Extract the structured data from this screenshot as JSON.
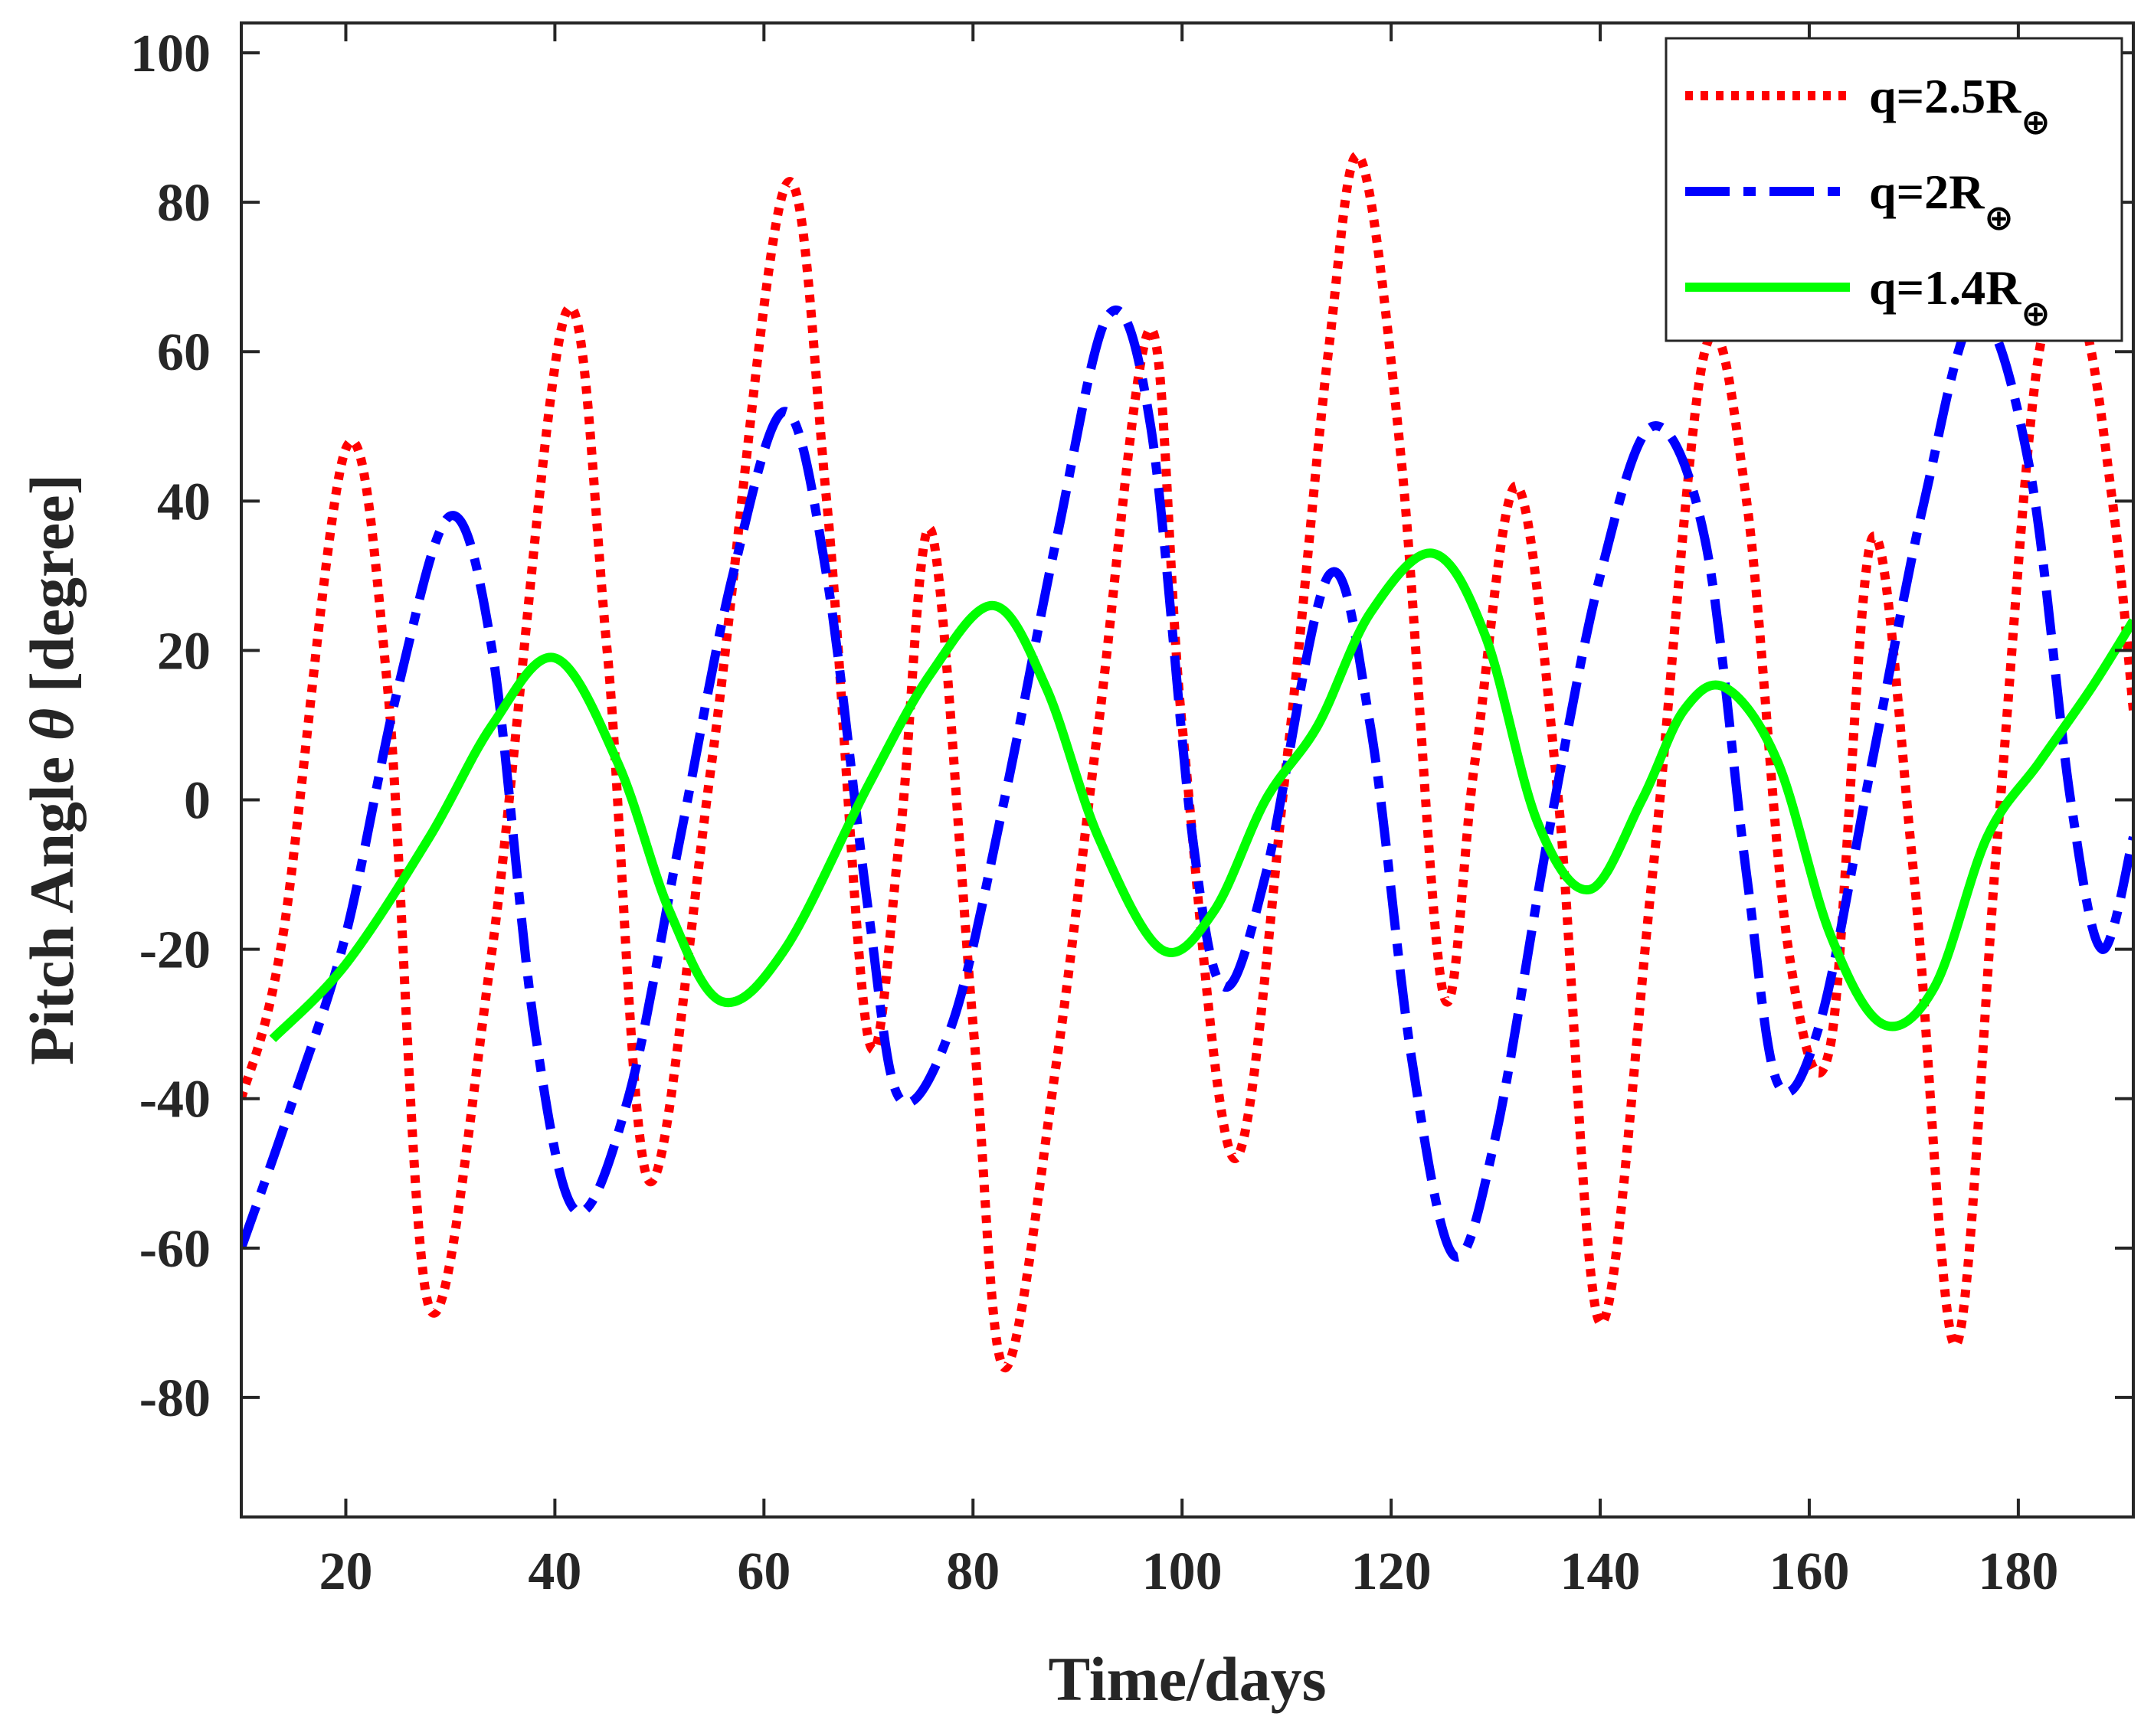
{
  "chart_data": {
    "type": "line",
    "title": "",
    "xlabel": "Time/days",
    "ylabel_prefix": "Pitch Angle ",
    "ylabel_symbol": "θ",
    "ylabel_suffix": " [degree]",
    "xlim": [
      10,
      191
    ],
    "ylim": [
      -96,
      104
    ],
    "xticks": [
      20,
      40,
      60,
      80,
      100,
      120,
      140,
      160,
      180
    ],
    "yticks": [
      -80,
      -60,
      -40,
      -20,
      0,
      20,
      40,
      60,
      80,
      100
    ],
    "grid": false,
    "legend_position": "top-right",
    "series": [
      {
        "name": "q=2.5R",
        "subscript": "⊕",
        "color": "#ff0000",
        "style": "dotted",
        "x": [
          10,
          14,
          20,
          24,
          28,
          34,
          41,
          45,
          49,
          55,
          62,
          66,
          70,
          73,
          76,
          80,
          83,
          88,
          92,
          97,
          100,
          105,
          110,
          114,
          117,
          121,
          125,
          128,
          132,
          136,
          140,
          145,
          150,
          154,
          158,
          162,
          166,
          170,
          174,
          178,
          182,
          186,
          189,
          191
        ],
        "y": [
          -40,
          -18,
          47,
          15,
          -68,
          -20,
          65,
          20,
          -51,
          5,
          82,
          40,
          -32,
          -5,
          36,
          -30,
          -76,
          -35,
          10,
          63,
          10,
          -48,
          5,
          60,
          86,
          45,
          -26,
          5,
          42,
          0,
          -70,
          -10,
          60,
          40,
          -20,
          -33,
          35,
          -10,
          -73,
          -5,
          60,
          65,
          40,
          12
        ]
      },
      {
        "name": "q=2R",
        "subscript": "⊕",
        "color": "#0000ff",
        "style": "dashdot",
        "x": [
          10,
          15,
          20,
          25,
          30,
          34,
          38,
          42,
          47,
          52,
          57,
          62,
          66,
          70,
          73,
          78,
          83,
          88,
          93,
          97,
          101,
          104,
          108,
          114,
          118,
          122,
          126,
          130,
          135,
          140,
          145,
          150,
          154,
          157,
          161,
          166,
          171,
          176,
          181,
          185,
          188,
          191
        ],
        "y": [
          -60,
          -40,
          -18,
          15,
          38,
          20,
          -30,
          -55,
          -40,
          -5,
          30,
          52,
          30,
          -15,
          -40,
          -30,
          0,
          35,
          65,
          50,
          -5,
          -25,
          -10,
          30,
          10,
          -35,
          -61,
          -45,
          -5,
          30,
          50,
          35,
          -10,
          -38,
          -30,
          5,
          40,
          65,
          45,
          0,
          -20,
          -5
        ]
      },
      {
        "name": "q=1.4R",
        "subscript": "⊕",
        "color": "#00ff00",
        "style": "solid",
        "x": [
          13,
          20,
          28,
          34,
          40,
          46,
          51,
          56,
          62,
          70,
          76,
          82,
          87,
          92,
          98,
          103,
          108,
          113,
          118,
          124,
          129,
          134,
          139,
          144,
          148,
          152,
          157,
          162,
          167,
          172,
          177,
          182,
          187,
          191
        ],
        "y": [
          -32,
          -22,
          -5,
          10,
          19,
          5,
          -15,
          -27,
          -20,
          2,
          17,
          26,
          15,
          -5,
          -20,
          -15,
          0,
          10,
          25,
          33,
          22,
          -3,
          -12,
          0,
          12,
          15,
          5,
          -18,
          -30,
          -25,
          -5,
          5,
          15,
          24
        ]
      }
    ]
  }
}
